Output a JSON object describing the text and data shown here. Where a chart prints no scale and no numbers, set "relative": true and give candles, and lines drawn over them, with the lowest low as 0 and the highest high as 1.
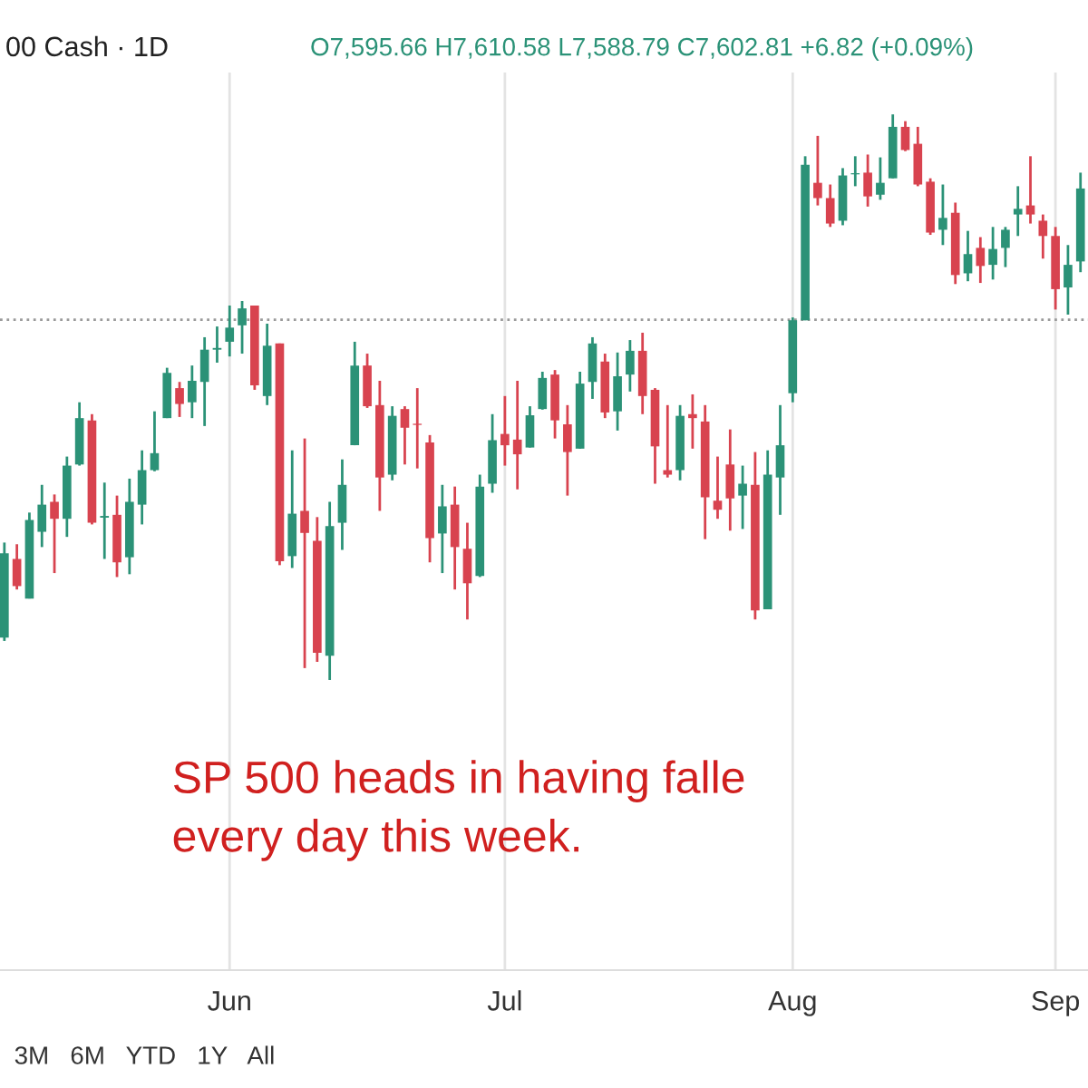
{
  "chart_data": {
    "type": "candlestick",
    "relative": true,
    "title": "00 Cash · 1D",
    "annotations": [
      "O7,595.66 H7,610.58 L7,588.79 C7,602.81 +6.82 (+0.09%)",
      "SP 500 heads in having falle\nevery day this week.",
      "3M   6M   YTD   1Y   All"
    ],
    "categories": [
      null,
      null,
      null,
      null,
      null,
      null,
      null,
      null,
      null,
      null,
      null,
      null,
      null,
      null,
      null,
      null,
      null,
      null,
      "Jun",
      null,
      null,
      null,
      null,
      null,
      null,
      null,
      null,
      null,
      null,
      null,
      null,
      null,
      null,
      null,
      null,
      null,
      null,
      null,
      null,
      null,
      "Jul",
      null,
      null,
      null,
      null,
      null,
      null,
      null,
      null,
      null,
      null,
      null,
      null,
      null,
      null,
      null,
      null,
      null,
      null,
      null,
      null,
      null,
      null,
      "Aug",
      null,
      null,
      null,
      null,
      null,
      null,
      null,
      null,
      null,
      null,
      null,
      null,
      null,
      null,
      null,
      null,
      null,
      null,
      null,
      null,
      "Sep",
      null,
      null
    ],
    "colors": [
      "#2b9277",
      "#d8434f",
      "#2b9277",
      "#2b9277",
      "#d8434f",
      "#2b9277",
      "#2b9277",
      "#d8434f",
      "#2b9277",
      "#d8434f",
      "#2b9277",
      "#2b9277",
      "#2b9277",
      "#2b9277",
      "#d8434f",
      "#2b9277",
      "#2b9277",
      "#2b9277",
      "#2b9277",
      "#2b9277",
      "#d8434f",
      "#2b9277",
      "#d8434f",
      "#2b9277",
      "#d8434f",
      "#d8434f",
      "#2b9277",
      "#2b9277",
      "#2b9277",
      "#d8434f",
      "#d8434f",
      "#2b9277",
      "#d8434f",
      "#d8434f",
      "#d8434f",
      "#2b9277",
      "#d8434f",
      "#d8434f",
      "#2b9277",
      "#2b9277",
      "#d8434f",
      "#d8434f",
      "#2b9277",
      "#2b9277",
      "#d8434f",
      "#d8434f",
      "#2b9277",
      "#2b9277",
      "#d8434f",
      "#2b9277",
      "#2b9277",
      "#d8434f",
      "#d8434f",
      "#d8434f",
      "#2b9277",
      "#d8434f",
      "#d8434f",
      "#d8434f",
      "#d8434f",
      "#2b9277",
      "#d8434f",
      "#2b9277",
      "#2b9277",
      "#2b9277",
      "#2b9277",
      "#d8434f",
      "#d8434f",
      "#2b9277",
      "#2b9277",
      "#d8434f",
      "#2b9277",
      "#2b9277",
      "#d8434f",
      "#d8434f",
      "#d8434f",
      "#2b9277",
      "#d8434f",
      "#2b9277",
      "#d8434f",
      "#2b9277",
      "#2b9277",
      "#2b9277",
      "#d8434f",
      "#d8434f",
      "#d8434f",
      "#2b9277",
      "#2b9277"
    ],
    "grid": "x",
    "ref_lines": [
      {
        "axis": "y",
        "value": 0.637,
        "color": "#9a9a9a",
        "line_style": "dotted"
      }
    ],
    "ohlc": [
      [
        0.075,
        0.243,
        0.069,
        0.224
      ],
      [
        0.214,
        0.24,
        0.16,
        0.166
      ],
      [
        0.144,
        0.296,
        0.144,
        0.283
      ],
      [
        0.262,
        0.345,
        0.235,
        0.31
      ],
      [
        0.315,
        0.328,
        0.189,
        0.285
      ],
      [
        0.285,
        0.395,
        0.253,
        0.379
      ],
      [
        0.381,
        0.491,
        0.379,
        0.463
      ],
      [
        0.459,
        0.47,
        0.275,
        0.278
      ],
      [
        0.287,
        0.349,
        0.214,
        0.29
      ],
      [
        0.292,
        0.326,
        0.182,
        0.208
      ],
      [
        0.217,
        0.356,
        0.187,
        0.315
      ],
      [
        0.31,
        0.406,
        0.275,
        0.371
      ],
      [
        0.371,
        0.475,
        0.369,
        0.401
      ],
      [
        0.463,
        0.552,
        0.463,
        0.543
      ],
      [
        0.516,
        0.527,
        0.465,
        0.488
      ],
      [
        0.491,
        0.556,
        0.463,
        0.529
      ],
      [
        0.527,
        0.606,
        0.449,
        0.584
      ],
      [
        0.584,
        0.625,
        0.561,
        0.587
      ],
      [
        0.598,
        0.662,
        0.572,
        0.623
      ],
      [
        0.627,
        0.67,
        0.577,
        0.657
      ],
      [
        0.662,
        0.662,
        0.513,
        0.521
      ],
      [
        0.502,
        0.63,
        0.486,
        0.591
      ],
      [
        0.595,
        0.595,
        0.203,
        0.21
      ],
      [
        0.219,
        0.406,
        0.198,
        0.294
      ],
      [
        0.299,
        0.427,
        0.021,
        0.26
      ],
      [
        0.246,
        0.288,
        0.032,
        0.048
      ],
      [
        0.043,
        0.315,
        0,
        0.272
      ],
      [
        0.278,
        0.39,
        0.23,
        0.345
      ],
      [
        0.415,
        0.598,
        0.415,
        0.556
      ],
      [
        0.556,
        0.577,
        0.481,
        0.484
      ],
      [
        0.486,
        0.529,
        0.299,
        0.358
      ],
      [
        0.363,
        0.484,
        0.353,
        0.467
      ],
      [
        0.479,
        0.484,
        0.381,
        0.446
      ],
      [
        0.453,
        0.516,
        0.374,
        0.451
      ],
      [
        0.42,
        0.433,
        0.208,
        0.251
      ],
      [
        0.259,
        0.345,
        0.189,
        0.307
      ],
      [
        0.31,
        0.342,
        0.16,
        0.235
      ],
      [
        0.232,
        0.278,
        0.107,
        0.171
      ],
      [
        0.184,
        0.363,
        0.182,
        0.342
      ],
      [
        0.347,
        0.47,
        0.331,
        0.424
      ],
      [
        0.435,
        0.502,
        0.379,
        0.415
      ],
      [
        0.425,
        0.529,
        0.337,
        0.399
      ],
      [
        0.411,
        0.484,
        0.411,
        0.468
      ],
      [
        0.479,
        0.545,
        0.478,
        0.534
      ],
      [
        0.54,
        0.548,
        0.427,
        0.459
      ],
      [
        0.452,
        0.486,
        0.326,
        0.403
      ],
      [
        0.409,
        0.545,
        0.409,
        0.524
      ],
      [
        0.527,
        0.606,
        0.497,
        0.595
      ],
      [
        0.563,
        0.577,
        0.463,
        0.473
      ],
      [
        0.475,
        0.579,
        0.441,
        0.537
      ],
      [
        0.54,
        0.601,
        0.51,
        0.582
      ],
      [
        0.582,
        0.614,
        0.47,
        0.502
      ],
      [
        0.513,
        0.516,
        0.347,
        0.413
      ],
      [
        0.371,
        0.486,
        0.358,
        0.363
      ],
      [
        0.371,
        0.486,
        0.353,
        0.467
      ],
      [
        0.47,
        0.505,
        0.409,
        0.463
      ],
      [
        0.457,
        0.486,
        0.249,
        0.323
      ],
      [
        0.317,
        0.395,
        0.285,
        0.301
      ],
      [
        0.381,
        0.443,
        0.264,
        0.321
      ],
      [
        0.326,
        0.379,
        0.267,
        0.347
      ],
      [
        0.345,
        0.403,
        0.107,
        0.123
      ],
      [
        0.125,
        0.406,
        0.125,
        0.363
      ],
      [
        0.358,
        0.486,
        0.292,
        0.415
      ],
      [
        0.507,
        0.641,
        0.491,
        0.636
      ],
      [
        0.636,
        0.926,
        0.636,
        0.911
      ],
      [
        0.879,
        0.962,
        0.839,
        0.852
      ],
      [
        0.852,
        0.876,
        0.801,
        0.807
      ],
      [
        0.812,
        0.905,
        0.804,
        0.892
      ],
      [
        0.894,
        0.926,
        0.873,
        0.896
      ],
      [
        0.897,
        0.929,
        0.837,
        0.855
      ],
      [
        0.858,
        0.924,
        0.849,
        0.879
      ],
      [
        0.887,
        1,
        0.887,
        0.978
      ],
      [
        0.978,
        0.988,
        0.935,
        0.937
      ],
      [
        0.948,
        0.978,
        0.873,
        0.876
      ],
      [
        0.881,
        0.887,
        0.787,
        0.791
      ],
      [
        0.796,
        0.876,
        0.769,
        0.817
      ],
      [
        0.826,
        0.844,
        0.7,
        0.716
      ],
      [
        0.719,
        0.794,
        0.705,
        0.753
      ],
      [
        0.764,
        0.783,
        0.702,
        0.732
      ],
      [
        0.734,
        0.801,
        0.708,
        0.762
      ],
      [
        0.764,
        0.801,
        0.73,
        0.796
      ],
      [
        0.823,
        0.873,
        0.785,
        0.833
      ],
      [
        0.839,
        0.926,
        0.807,
        0.823
      ],
      [
        0.812,
        0.823,
        0.745,
        0.785
      ],
      [
        0.785,
        0.801,
        0.655,
        0.691
      ],
      [
        0.694,
        0.769,
        0.646,
        0.734
      ],
      [
        0.74,
        0.897,
        0.721,
        0.869
      ]
    ]
  }
}
